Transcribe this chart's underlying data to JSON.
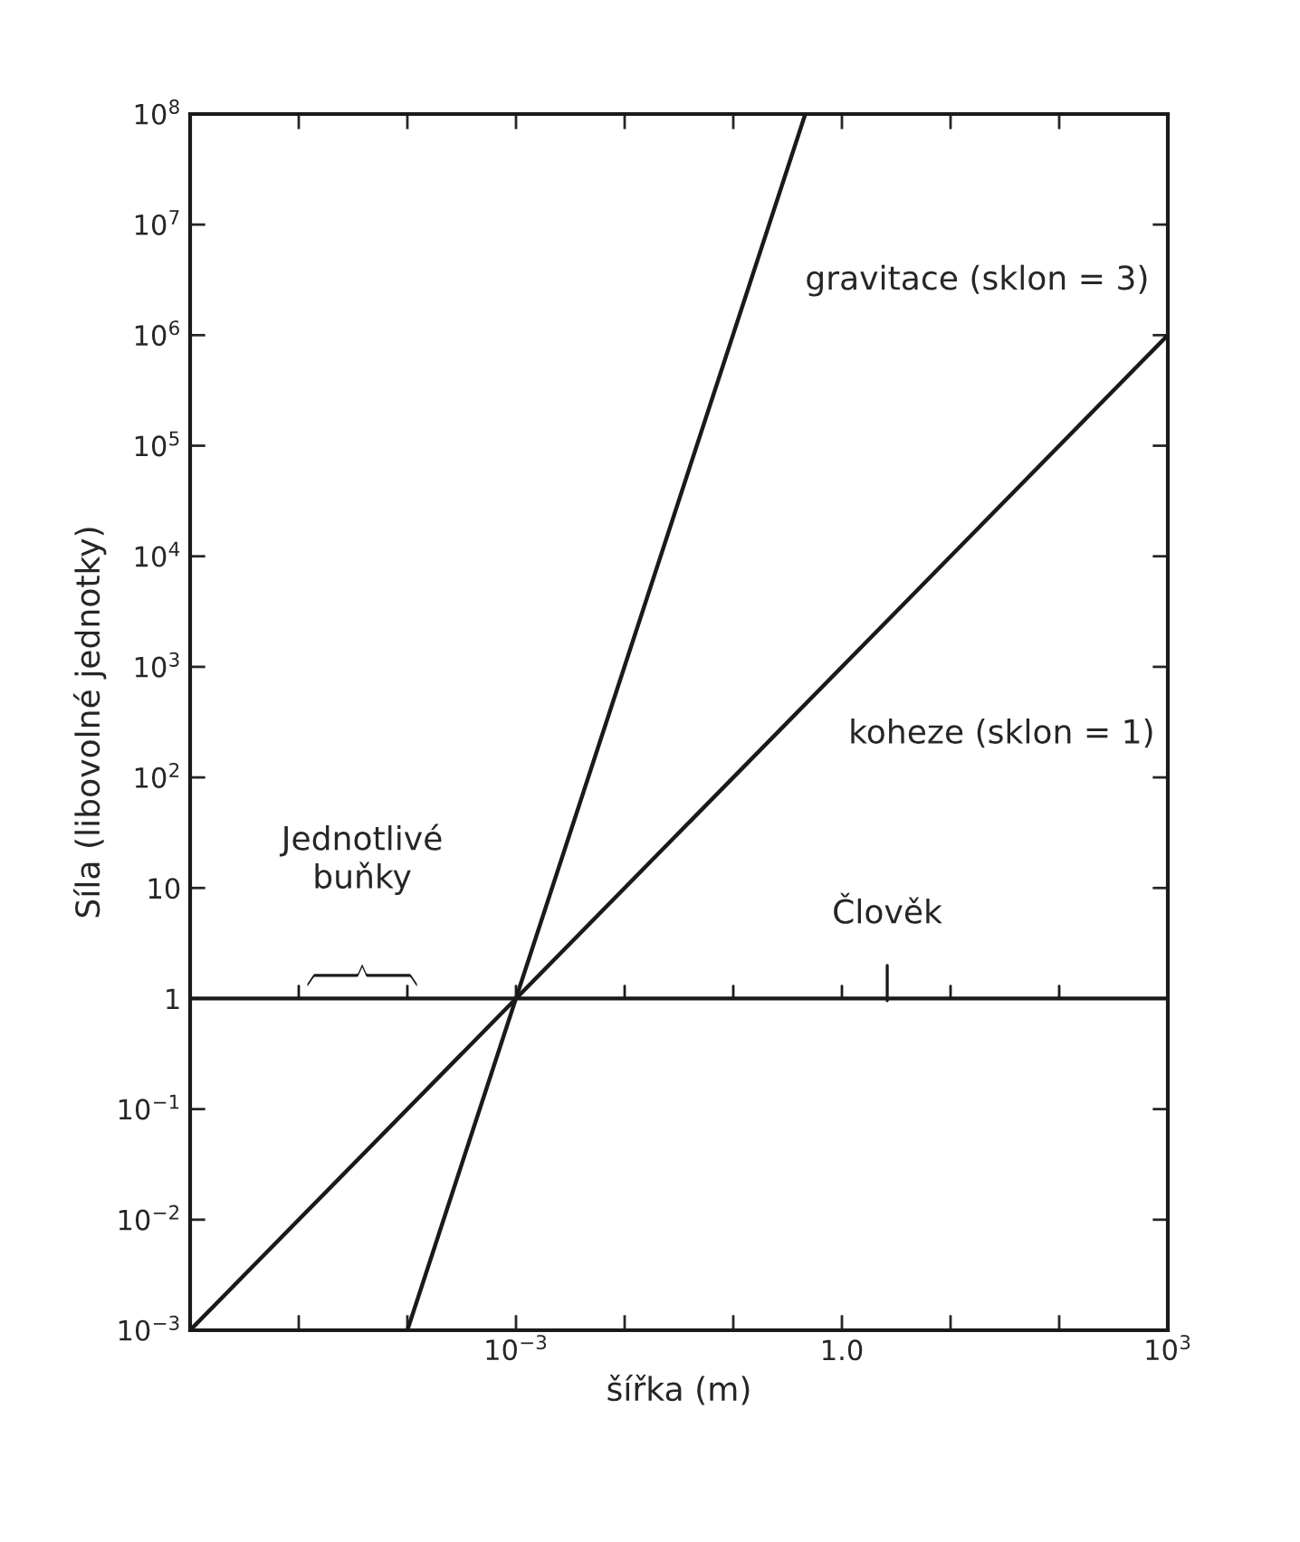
{
  "chart_data": {
    "type": "line",
    "xlabel": "šířka (m)",
    "ylabel": "Síla (libovolné jednotky)",
    "log": "xy",
    "xlim": [
      1e-06,
      1000.0
    ],
    "ylim": [
      0.001,
      100000000.0
    ],
    "xticks": [
      {
        "value": 1e-06,
        "label": null
      },
      {
        "value": 1e-05,
        "label": null
      },
      {
        "value": 0.0001,
        "label": null
      },
      {
        "value": 0.001,
        "label": "10$^{−3}$"
      },
      {
        "value": 0.01,
        "label": null
      },
      {
        "value": 0.1,
        "label": null
      },
      {
        "value": 1,
        "label": "1.0"
      },
      {
        "value": 10,
        "label": null
      },
      {
        "value": 100,
        "label": null
      },
      {
        "value": 1000,
        "label": "10$^{3}$"
      }
    ],
    "yticks": [
      {
        "value": 0.001,
        "label": "10$^{−3}$"
      },
      {
        "value": 0.01,
        "label": "10$^{−2}$"
      },
      {
        "value": 0.1,
        "label": "10$^{−1}$"
      },
      1,
      10,
      {
        "value": 100,
        "label": "10$^{2}$"
      },
      {
        "value": 1000,
        "label": "10$^{3}$"
      },
      {
        "value": 10000.0,
        "label": "10$^{4}$"
      },
      {
        "value": 100000.0,
        "label": "10$^{5}$"
      },
      {
        "value": 1000000.0,
        "label": "10$^{6}$"
      },
      {
        "value": 10000000.0,
        "label": "10$^{7}$"
      },
      {
        "value": 100000000.0,
        "label": "10$^{8}$"
      }
    ],
    "series": [
      {
        "name": "gravitace (sklon = 3)",
        "color": "#1a1a1a",
        "x": [
          0.0001,
          0.46
        ],
        "values": [
          0.001,
          100000000.0
        ]
      },
      {
        "name": "koheze (sklon = 1)",
        "color": "#1a1a1a",
        "x": [
          1e-06,
          1000.0
        ],
        "values": [
          0.001,
          1000000.0
        ]
      }
    ],
    "ref_lines": [
      {
        "axis": "y",
        "value": 1,
        "color": "#1a1a1a"
      }
    ],
    "annotations": [
      "Člověk",
      "Jednotlivé\nbuňky"
    ],
    "grid": false,
    "legend": false,
    "marker": "none",
    "line_style": "solid"
  }
}
